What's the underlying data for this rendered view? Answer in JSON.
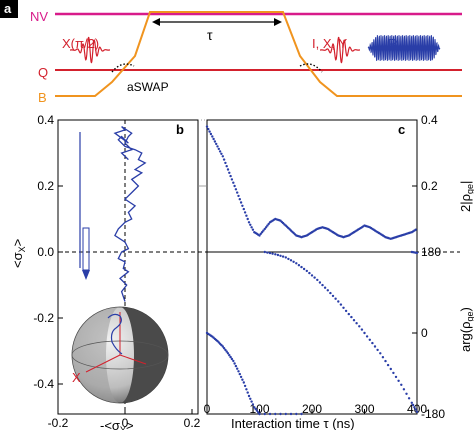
{
  "panel_a": {
    "letter": "a",
    "lines": {
      "nv": "NV",
      "q": "Q",
      "b": "B"
    },
    "pulses": {
      "x_pi2": "X(π/2)",
      "ixy": "I, X, Y",
      "r": "R"
    },
    "tau": "τ",
    "aswap": "aSWAP",
    "colors": {
      "nv": "#d81b8a",
      "q": "#d3212d",
      "b": "#f0941f",
      "pulse_red": "#d3212d",
      "pulse_blue": "#2a3ea8"
    }
  },
  "panel_b": {
    "letter": "b",
    "ylabel": "<σX>",
    "ylabel_main": "<σ",
    "ylabel_sub": "X",
    "ylabel_close": ">",
    "xlabel_prefix": "-<σ",
    "xlabel_sub": "Y",
    "xlabel_close": ">",
    "bloch_axis_label": "X",
    "yticks": [
      "-0.4",
      "-0.2",
      "0.0",
      "0.2",
      "0.4"
    ],
    "xticks": [
      "-0.2",
      "0",
      "0.2"
    ]
  },
  "panel_c": {
    "letter": "c",
    "xlabel": "Interaction time τ (ns)",
    "xticks": [
      "0",
      "100",
      "200",
      "300",
      "400"
    ],
    "right_top_label_main": "2|ρ",
    "right_top_label_sub": "ge",
    "right_top_label_close": "|",
    "right_bottom_label_main": "arg(ρ",
    "right_bottom_label_sub": "ge",
    "right_bottom_label_close": ")",
    "top_ticks": [
      "0.4",
      "0.2"
    ],
    "bottom_ticks": [
      "180",
      "0",
      "-180"
    ]
  },
  "chart_data": [
    {
      "type": "line",
      "panel": "b",
      "xlim": [
        -0.2,
        0.2
      ],
      "ylim": [
        -0.4,
        0.4
      ],
      "series": [
        {
          "x": [
            0.0,
            -0.01,
            0.005,
            -0.015,
            0.01,
            -0.005,
            0.0,
            -0.02,
            -0.01,
            0.01,
            0.0,
            -0.03,
            -0.02,
            0.0,
            0.02,
            0.01,
            0.03,
            0.0,
            0.02,
            0.04,
            0.02,
            0.05,
            0.03,
            0.06,
            0.04,
            0.05,
            0.03,
            0.0,
            -0.02,
            -0.01,
            0.01,
            -0.03,
            0.0,
            -0.01,
            0.02,
            0.01,
            0.0,
            0.02,
            -0.01,
            0.01
          ],
          "y": [
            -0.15,
            -0.12,
            -0.1,
            -0.08,
            -0.06,
            -0.05,
            -0.03,
            -0.02,
            0.0,
            0.01,
            0.03,
            0.05,
            0.07,
            0.09,
            0.1,
            0.12,
            0.14,
            0.16,
            0.18,
            0.2,
            0.22,
            0.24,
            0.25,
            0.27,
            0.28,
            0.3,
            0.31,
            0.32,
            0.34,
            0.35,
            0.33,
            0.36,
            0.37,
            0.38,
            0.36,
            0.35,
            0.33,
            0.31,
            0.3,
            0.28
          ]
        }
      ]
    },
    {
      "type": "scatter",
      "panel": "c-top",
      "xlim": [
        0,
        400
      ],
      "ylim": [
        0.0,
        0.4
      ],
      "x": [
        0,
        10,
        20,
        30,
        40,
        50,
        60,
        70,
        80,
        90,
        100,
        110,
        120,
        130,
        140,
        150,
        160,
        170,
        180,
        190,
        200,
        210,
        220,
        230,
        240,
        250,
        260,
        270,
        280,
        290,
        300,
        310,
        320,
        330,
        340,
        350,
        360,
        370,
        380,
        390,
        400
      ],
      "y": [
        0.38,
        0.35,
        0.32,
        0.29,
        0.25,
        0.21,
        0.17,
        0.13,
        0.09,
        0.06,
        0.05,
        0.07,
        0.09,
        0.1,
        0.095,
        0.08,
        0.065,
        0.05,
        0.045,
        0.05,
        0.06,
        0.07,
        0.075,
        0.07,
        0.06,
        0.05,
        0.045,
        0.05,
        0.06,
        0.07,
        0.08,
        0.075,
        0.065,
        0.055,
        0.045,
        0.04,
        0.045,
        0.05,
        0.055,
        0.06,
        0.07
      ]
    },
    {
      "type": "scatter",
      "panel": "c-bottom",
      "xlim": [
        0,
        400
      ],
      "ylim": [
        -180,
        180
      ],
      "series": [
        {
          "name": "",
          "x": [
            0,
            10,
            20,
            30,
            40,
            50,
            60,
            70,
            80,
            90,
            100
          ],
          "y": [
            0,
            -8,
            -18,
            -30,
            -45,
            -62,
            -85,
            -110,
            -140,
            -165,
            -180
          ]
        },
        {
          "name": "",
          "x": [
            100,
            140,
            180
          ],
          "y": [
            -180,
            -180,
            -180
          ]
        },
        {
          "name": "",
          "x": [
            110,
            130,
            150,
            170,
            190,
            210,
            230,
            250,
            270,
            290,
            310,
            330,
            350,
            370,
            390,
            400
          ],
          "y": [
            180,
            175,
            168,
            155,
            138,
            118,
            95,
            70,
            42,
            15,
            -15,
            -45,
            -80,
            -115,
            -155,
            -175
          ]
        },
        {
          "name": "",
          "x": [
            390,
            400
          ],
          "y": [
            180,
            178
          ]
        }
      ]
    }
  ]
}
